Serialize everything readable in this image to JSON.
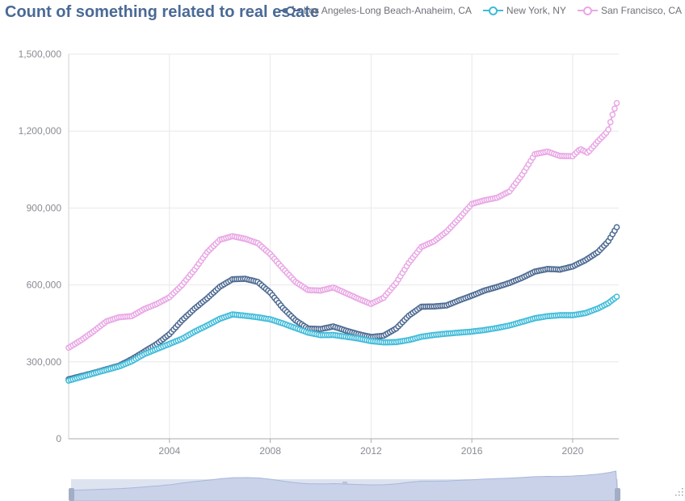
{
  "chart_data": {
    "type": "line",
    "title": "Count of something related to real estate",
    "xlabel": "",
    "ylabel": "",
    "x_range": [
      2000.0,
      2021.83
    ],
    "ylim": [
      0,
      1500000
    ],
    "y_ticks": [
      0,
      300000,
      600000,
      900000,
      1200000,
      1500000
    ],
    "y_tick_labels": [
      "0",
      "300,000",
      "600,000",
      "900,000",
      "1,200,000",
      "1,500,000"
    ],
    "x_ticks": [
      2004,
      2008,
      2012,
      2016,
      2020
    ],
    "x_tick_labels": [
      "2004",
      "2008",
      "2012",
      "2016",
      "2020"
    ],
    "grid": true,
    "legend_position": "top-right",
    "markers": "hollow circles",
    "data_zoom_slider": true,
    "series": [
      {
        "name": "Los Angeles-Long Beach-Anaheim, CA",
        "color": "#4c6991",
        "points": [
          [
            2000.0,
            232000
          ],
          [
            2001.0,
            257000
          ],
          [
            2002.0,
            285000
          ],
          [
            2002.5,
            310000
          ],
          [
            2003.0,
            340000
          ],
          [
            2003.5,
            370000
          ],
          [
            2004.0,
            408000
          ],
          [
            2004.5,
            462000
          ],
          [
            2005.0,
            508000
          ],
          [
            2005.5,
            548000
          ],
          [
            2006.0,
            593000
          ],
          [
            2006.5,
            622000
          ],
          [
            2007.0,
            624000
          ],
          [
            2007.5,
            612000
          ],
          [
            2008.0,
            570000
          ],
          [
            2008.5,
            510000
          ],
          [
            2009.0,
            462000
          ],
          [
            2009.5,
            430000
          ],
          [
            2010.0,
            428000
          ],
          [
            2010.5,
            438000
          ],
          [
            2011.0,
            422000
          ],
          [
            2011.5,
            408000
          ],
          [
            2012.0,
            397000
          ],
          [
            2012.5,
            402000
          ],
          [
            2013.0,
            430000
          ],
          [
            2013.5,
            480000
          ],
          [
            2014.0,
            515000
          ],
          [
            2014.5,
            516000
          ],
          [
            2015.0,
            520000
          ],
          [
            2015.5,
            540000
          ],
          [
            2016.0,
            558000
          ],
          [
            2016.5,
            578000
          ],
          [
            2017.0,
            592000
          ],
          [
            2017.5,
            608000
          ],
          [
            2018.0,
            628000
          ],
          [
            2018.5,
            652000
          ],
          [
            2019.0,
            662000
          ],
          [
            2019.5,
            660000
          ],
          [
            2020.0,
            672000
          ],
          [
            2020.5,
            696000
          ],
          [
            2021.0,
            728000
          ],
          [
            2021.4,
            768000
          ],
          [
            2021.83,
            838000
          ]
        ]
      },
      {
        "name": "New York, NY",
        "color": "#3fbbd9",
        "points": [
          [
            2000.0,
            227000
          ],
          [
            2001.0,
            255000
          ],
          [
            2002.0,
            282000
          ],
          [
            2002.5,
            302000
          ],
          [
            2003.0,
            330000
          ],
          [
            2003.5,
            350000
          ],
          [
            2004.0,
            370000
          ],
          [
            2004.5,
            390000
          ],
          [
            2005.0,
            418000
          ],
          [
            2005.5,
            442000
          ],
          [
            2006.0,
            468000
          ],
          [
            2006.5,
            485000
          ],
          [
            2007.0,
            480000
          ],
          [
            2007.5,
            474000
          ],
          [
            2008.0,
            466000
          ],
          [
            2008.5,
            450000
          ],
          [
            2009.0,
            432000
          ],
          [
            2009.5,
            414000
          ],
          [
            2010.0,
            404000
          ],
          [
            2010.5,
            405000
          ],
          [
            2011.0,
            398000
          ],
          [
            2011.5,
            391000
          ],
          [
            2012.0,
            381000
          ],
          [
            2012.5,
            376000
          ],
          [
            2013.0,
            377000
          ],
          [
            2013.5,
            385000
          ],
          [
            2014.0,
            398000
          ],
          [
            2014.5,
            405000
          ],
          [
            2015.0,
            410000
          ],
          [
            2015.5,
            414000
          ],
          [
            2016.0,
            418000
          ],
          [
            2016.5,
            424000
          ],
          [
            2017.0,
            432000
          ],
          [
            2017.5,
            442000
          ],
          [
            2018.0,
            456000
          ],
          [
            2018.5,
            470000
          ],
          [
            2019.0,
            478000
          ],
          [
            2019.5,
            482000
          ],
          [
            2020.0,
            482000
          ],
          [
            2020.5,
            490000
          ],
          [
            2021.0,
            508000
          ],
          [
            2021.4,
            528000
          ],
          [
            2021.83,
            560000
          ]
        ]
      },
      {
        "name": "San Francisco, CA",
        "color": "#e9a7e5",
        "points": [
          [
            2000.0,
            355000
          ],
          [
            2000.5,
            385000
          ],
          [
            2001.0,
            420000
          ],
          [
            2001.5,
            458000
          ],
          [
            2002.0,
            474000
          ],
          [
            2002.5,
            478000
          ],
          [
            2003.0,
            506000
          ],
          [
            2003.5,
            526000
          ],
          [
            2004.0,
            552000
          ],
          [
            2004.5,
            600000
          ],
          [
            2005.0,
            660000
          ],
          [
            2005.5,
            728000
          ],
          [
            2006.0,
            776000
          ],
          [
            2006.5,
            790000
          ],
          [
            2007.0,
            780000
          ],
          [
            2007.5,
            763000
          ],
          [
            2008.0,
            720000
          ],
          [
            2008.5,
            664000
          ],
          [
            2009.0,
            612000
          ],
          [
            2009.5,
            580000
          ],
          [
            2010.0,
            578000
          ],
          [
            2010.5,
            590000
          ],
          [
            2011.0,
            568000
          ],
          [
            2011.5,
            546000
          ],
          [
            2012.0,
            526000
          ],
          [
            2012.5,
            550000
          ],
          [
            2013.0,
            608000
          ],
          [
            2013.5,
            686000
          ],
          [
            2014.0,
            748000
          ],
          [
            2014.5,
            770000
          ],
          [
            2015.0,
            808000
          ],
          [
            2015.5,
            860000
          ],
          [
            2016.0,
            916000
          ],
          [
            2016.5,
            930000
          ],
          [
            2017.0,
            940000
          ],
          [
            2017.5,
            965000
          ],
          [
            2018.0,
            1030000
          ],
          [
            2018.5,
            1110000
          ],
          [
            2019.0,
            1120000
          ],
          [
            2019.5,
            1103000
          ],
          [
            2020.0,
            1102000
          ],
          [
            2020.3,
            1130000
          ],
          [
            2020.6,
            1115000
          ],
          [
            2021.0,
            1160000
          ],
          [
            2021.4,
            1200000
          ],
          [
            2021.6,
            1270000
          ],
          [
            2021.83,
            1330000
          ]
        ]
      }
    ]
  }
}
